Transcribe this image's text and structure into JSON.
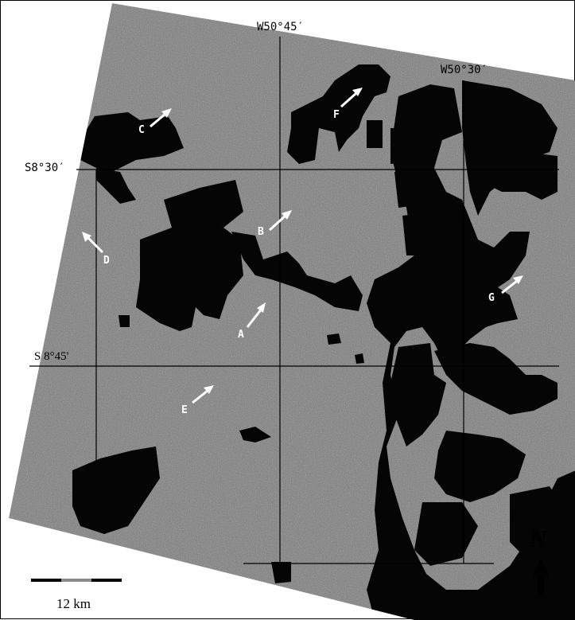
{
  "map": {
    "grid_labels": {
      "lon_w50_45": "W50°45′",
      "lon_w50_30": "W50°30′",
      "lat_s8_30": "S8°30′",
      "lat_s8_45": "S 8°45'"
    },
    "markers": {
      "a": "A",
      "b": "B",
      "c": "C",
      "d": "D",
      "e": "E",
      "f": "F",
      "g": "G"
    },
    "scale_bar": {
      "label": "12 km"
    },
    "north_arrow": {
      "label": "N"
    },
    "colors": {
      "terrain": "#7a7a7a",
      "cleared": "#050505",
      "grid": "#000000",
      "arrow": "#ffffff"
    }
  }
}
